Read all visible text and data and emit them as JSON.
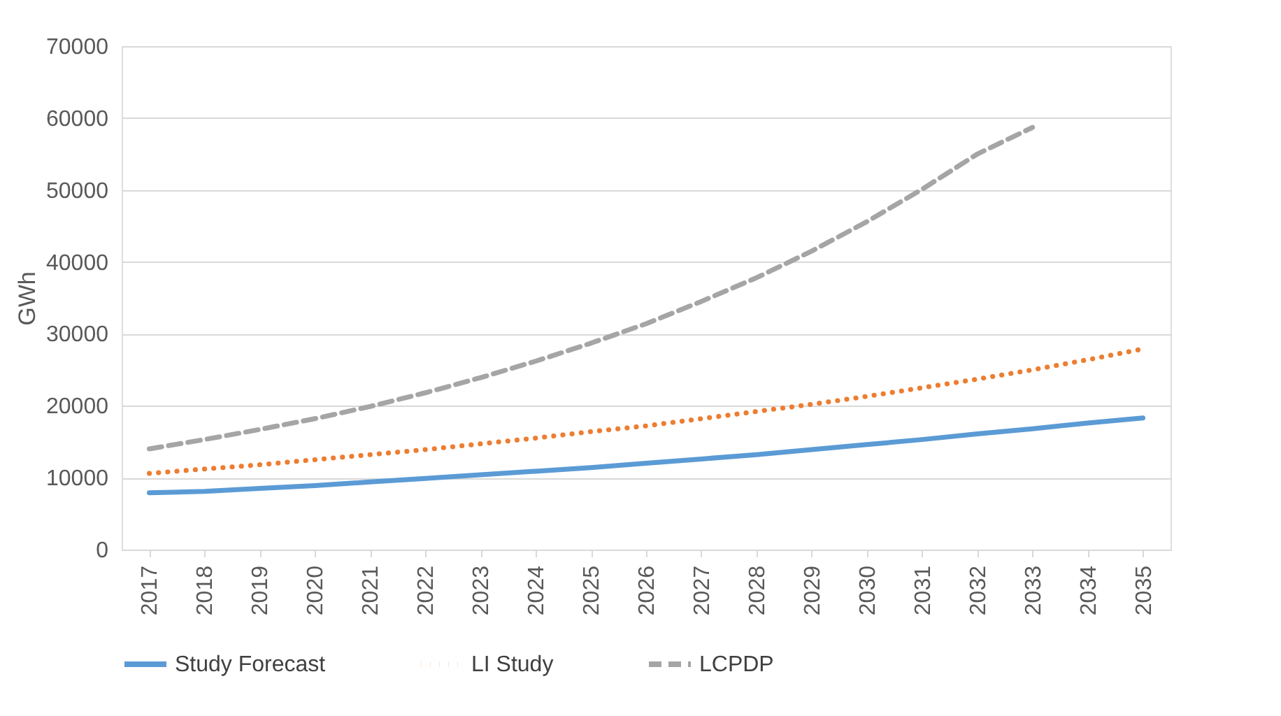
{
  "chart_data": {
    "type": "line",
    "ylabel": "GWh",
    "categories": [
      "2017",
      "2018",
      "2019",
      "2020",
      "2021",
      "2022",
      "2023",
      "2024",
      "2025",
      "2026",
      "2027",
      "2028",
      "2029",
      "2030",
      "2031",
      "2032",
      "2033",
      "2034",
      "2035"
    ],
    "series": [
      {
        "name": "Study Forecast",
        "color": "#5b9bd5",
        "line_style": "solid",
        "values": [
          7900,
          8100,
          8500,
          8900,
          9400,
          9900,
          10400,
          10900,
          11400,
          12000,
          12600,
          13200,
          13900,
          14600,
          15300,
          16100,
          16800,
          17600,
          18300
        ]
      },
      {
        "name": "LI Study",
        "color": "#ed7d31",
        "line_style": "dotted",
        "values": [
          10600,
          11200,
          11800,
          12500,
          13200,
          13900,
          14700,
          15500,
          16400,
          17200,
          18200,
          19200,
          20200,
          21300,
          22500,
          23700,
          25000,
          26400,
          27900
        ]
      },
      {
        "name": "LCPDP",
        "color": "#a5a5a5",
        "line_style": "dashed",
        "values": [
          14000,
          15300,
          16700,
          18200,
          19900,
          21800,
          23900,
          26200,
          28700,
          31400,
          34500,
          37800,
          41500,
          45600,
          50100,
          55000,
          58700,
          null,
          null
        ]
      }
    ],
    "ylim": [
      0,
      70000
    ],
    "yticks": [
      0,
      {
        "value": 10000,
        "label": "10000"
      },
      {
        "value": 20000,
        "label": "20000"
      },
      {
        "value": 30000,
        "label": "30000"
      },
      {
        "value": 40000,
        "label": "40000"
      },
      {
        "value": 50000,
        "label": "50000"
      },
      {
        "value": 60000,
        "label": "60000"
      },
      {
        "value": 70000,
        "label": "70000"
      }
    ],
    "grid": "y",
    "legend": "bottom",
    "marker": "none"
  }
}
